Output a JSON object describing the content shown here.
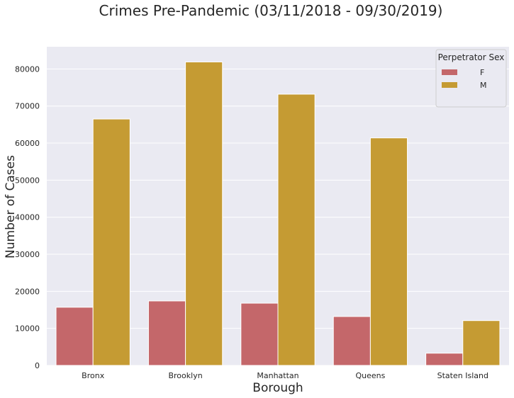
{
  "chart_data": {
    "type": "bar",
    "title": "Crimes Pre-Pandemic (03/11/2018 - 09/30/2019)",
    "xlabel": "Borough",
    "ylabel": "Number of Cases",
    "categories": [
      "Bronx",
      "Brooklyn",
      "Manhattan",
      "Queens",
      "Staten Island"
    ],
    "series": [
      {
        "name": "F",
        "color": "#c4676a",
        "values": [
          15700,
          17400,
          16800,
          13200,
          3300
        ]
      },
      {
        "name": "M",
        "color": "#c59b33",
        "values": [
          66500,
          81900,
          73200,
          61400,
          12100
        ]
      }
    ],
    "ylim": [
      0,
      86000
    ],
    "yticks": [
      0,
      10000,
      20000,
      30000,
      40000,
      50000,
      60000,
      70000,
      80000
    ],
    "grid": true,
    "legend": {
      "title": "Perpetrator Sex",
      "position": "top-right"
    },
    "background_color": "#eaeaf2"
  }
}
